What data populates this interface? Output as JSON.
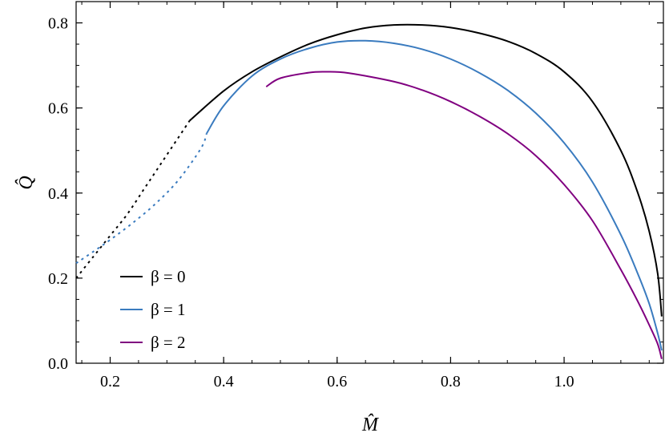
{
  "chart_data": {
    "type": "line",
    "xlabel": "M̂",
    "ylabel": "Q̂",
    "xlim": [
      0.14,
      1.175
    ],
    "ylim": [
      0.0,
      0.85
    ],
    "xticks": [
      0.2,
      0.4,
      0.6,
      0.8,
      1.0
    ],
    "xtick_labels": [
      "0.2",
      "0.4",
      "0.6",
      "0.8",
      "1.0"
    ],
    "yticks": [
      0.0,
      0.2,
      0.4,
      0.6,
      0.8
    ],
    "ytick_labels": [
      "0.0",
      "0.2",
      "0.4",
      "0.6",
      "0.8"
    ],
    "grid": false,
    "legend_position": "lower-left",
    "series": [
      {
        "name": "β = 0",
        "color": "#000000",
        "dashed": [
          [
            0.14,
            0.2
          ],
          [
            0.17,
            0.25
          ],
          [
            0.2,
            0.3
          ],
          [
            0.23,
            0.35
          ],
          [
            0.26,
            0.41
          ],
          [
            0.29,
            0.47
          ],
          [
            0.32,
            0.53
          ],
          [
            0.34,
            0.57
          ]
        ],
        "solid": [
          [
            0.34,
            0.57
          ],
          [
            0.4,
            0.64
          ],
          [
            0.45,
            0.685
          ],
          [
            0.5,
            0.72
          ],
          [
            0.55,
            0.75
          ],
          [
            0.6,
            0.772
          ],
          [
            0.65,
            0.788
          ],
          [
            0.7,
            0.795
          ],
          [
            0.75,
            0.795
          ],
          [
            0.8,
            0.789
          ],
          [
            0.85,
            0.776
          ],
          [
            0.9,
            0.757
          ],
          [
            0.95,
            0.728
          ],
          [
            1.0,
            0.685
          ],
          [
            1.05,
            0.615
          ],
          [
            1.1,
            0.5
          ],
          [
            1.13,
            0.4
          ],
          [
            1.15,
            0.31
          ],
          [
            1.165,
            0.21
          ],
          [
            1.172,
            0.11
          ]
        ]
      },
      {
        "name": "β = 1",
        "color": "#3a7bbf",
        "dashed": [
          [
            0.14,
            0.235
          ],
          [
            0.17,
            0.262
          ],
          [
            0.2,
            0.29
          ],
          [
            0.24,
            0.33
          ],
          [
            0.28,
            0.375
          ],
          [
            0.32,
            0.43
          ],
          [
            0.36,
            0.505
          ],
          [
            0.37,
            0.54
          ]
        ],
        "solid": [
          [
            0.37,
            0.54
          ],
          [
            0.4,
            0.605
          ],
          [
            0.45,
            0.675
          ],
          [
            0.5,
            0.715
          ],
          [
            0.55,
            0.74
          ],
          [
            0.6,
            0.755
          ],
          [
            0.65,
            0.758
          ],
          [
            0.7,
            0.752
          ],
          [
            0.75,
            0.738
          ],
          [
            0.8,
            0.715
          ],
          [
            0.85,
            0.683
          ],
          [
            0.9,
            0.642
          ],
          [
            0.95,
            0.588
          ],
          [
            1.0,
            0.518
          ],
          [
            1.05,
            0.426
          ],
          [
            1.1,
            0.302
          ],
          [
            1.13,
            0.21
          ],
          [
            1.15,
            0.14
          ],
          [
            1.165,
            0.07
          ],
          [
            1.172,
            0.03
          ]
        ]
      },
      {
        "name": "β = 2",
        "color": "#800080",
        "dashed": [],
        "solid": [
          [
            0.475,
            0.65
          ],
          [
            0.5,
            0.67
          ],
          [
            0.55,
            0.683
          ],
          [
            0.58,
            0.685
          ],
          [
            0.62,
            0.682
          ],
          [
            0.7,
            0.662
          ],
          [
            0.75,
            0.642
          ],
          [
            0.8,
            0.615
          ],
          [
            0.85,
            0.581
          ],
          [
            0.9,
            0.54
          ],
          [
            0.95,
            0.488
          ],
          [
            1.0,
            0.42
          ],
          [
            1.05,
            0.335
          ],
          [
            1.1,
            0.22
          ],
          [
            1.13,
            0.145
          ],
          [
            1.15,
            0.09
          ],
          [
            1.165,
            0.045
          ],
          [
            1.172,
            0.01
          ]
        ]
      }
    ]
  }
}
